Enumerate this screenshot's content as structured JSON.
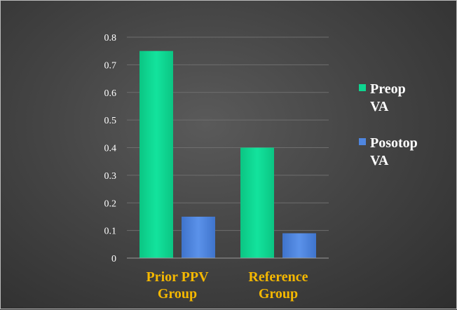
{
  "chart_data": {
    "type": "bar",
    "categories": [
      [
        "Prior PPV",
        "Group"
      ],
      [
        "Reference",
        "Group"
      ]
    ],
    "series": [
      {
        "name": [
          "Preop",
          "VA"
        ],
        "values": [
          0.75,
          0.4
        ],
        "color": "#0ed690"
      },
      {
        "name": [
          "Posotop",
          "VA"
        ],
        "values": [
          0.15,
          0.09
        ],
        "color": "#4f86e0"
      }
    ],
    "ylim": [
      0,
      0.8
    ],
    "yticks": [
      "0",
      "0.1",
      "0.2",
      "0.3",
      "0.4",
      "0.5",
      "0.6",
      "0.7",
      "0.8"
    ],
    "grid": true,
    "legend_position": "right",
    "category_label_color": "#f5b800"
  }
}
